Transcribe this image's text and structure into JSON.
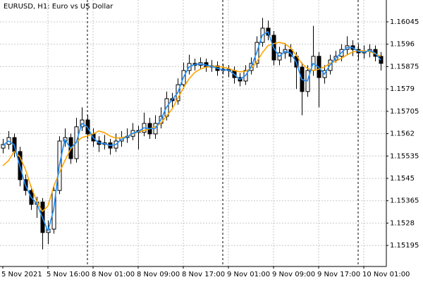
{
  "chart_data": {
    "type": "candlestick",
    "title": "EURUSD, H1:  Euro vs US Dollar",
    "categories": [
      "5 Nov 2021",
      null,
      null,
      null,
      null,
      null,
      null,
      null,
      "5 Nov 16:00",
      null,
      null,
      null,
      null,
      null,
      null,
      null,
      "8 Nov 01:00",
      null,
      null,
      null,
      null,
      null,
      null,
      null,
      "8 Nov 09:00",
      null,
      null,
      null,
      null,
      null,
      null,
      null,
      "8 Nov 17:00",
      null,
      null,
      null,
      null,
      null,
      null,
      null,
      "9 Nov 01:00",
      null,
      null,
      null,
      null,
      null,
      null,
      null,
      "9 Nov 09:00",
      null,
      null,
      null,
      null,
      null,
      null,
      null,
      "9 Nov 17:00",
      null,
      null,
      null,
      null,
      null,
      null,
      null,
      "10 Nov 01:00",
      null,
      null,
      null
    ],
    "open": [
      1.15565,
      1.15579,
      1.15605,
      1.15552,
      1.15445,
      1.15404,
      1.15351,
      1.1536,
      1.15244,
      1.15257,
      1.15404,
      1.15592,
      1.15605,
      1.15525,
      1.15646,
      1.15672,
      1.15619,
      1.15592,
      1.15579,
      1.15585,
      1.15565,
      1.15592,
      1.15605,
      1.1561,
      1.15632,
      1.15625,
      1.15659,
      1.15619,
      1.15659,
      1.15686,
      1.15753,
      1.15745,
      1.15806,
      1.1586,
      1.15887,
      1.1588,
      1.1589,
      1.15873,
      1.15878,
      1.1586,
      1.15865,
      1.1586,
      1.15833,
      1.1582,
      1.1586,
      1.15887,
      1.15967,
      1.16021,
      1.15994,
      1.159,
      1.15927,
      1.1594,
      1.15914,
      1.15873,
      1.1578,
      1.1586,
      1.15914,
      1.15833,
      1.1586,
      1.159,
      1.15914,
      1.1594,
      1.15954,
      1.1594,
      1.15927,
      1.15932,
      1.1594,
      1.15914
    ],
    "high": [
      1.156,
      1.1563,
      1.1562,
      1.1557,
      1.15465,
      1.1542,
      1.1538,
      1.15375,
      1.1529,
      1.1542,
      1.1561,
      1.1564,
      1.1562,
      1.1568,
      1.1572,
      1.1569,
      1.1564,
      1.1561,
      1.15615,
      1.156,
      1.1562,
      1.1563,
      1.1564,
      1.1566,
      1.1565,
      1.157,
      1.1568,
      1.1569,
      1.1572,
      1.1578,
      1.15775,
      1.1583,
      1.1589,
      1.1592,
      1.15905,
      1.1591,
      1.15905,
      1.159,
      1.15895,
      1.15885,
      1.1588,
      1.15875,
      1.1585,
      1.1588,
      1.1591,
      1.1599,
      1.1606,
      1.1605,
      1.1601,
      1.1595,
      1.15965,
      1.1596,
      1.1593,
      1.1589,
      1.1588,
      1.1603,
      1.1593,
      1.1588,
      1.1592,
      1.15935,
      1.1596,
      1.1599,
      1.15975,
      1.1596,
      1.15955,
      1.1596,
      1.15955,
      1.1593
    ],
    "low": [
      1.15545,
      1.1556,
      1.1553,
      1.1542,
      1.15385,
      1.1533,
      1.153,
      1.1518,
      1.152,
      1.1524,
      1.1539,
      1.1557,
      1.15505,
      1.1551,
      1.1563,
      1.156,
      1.1557,
      1.1555,
      1.1556,
      1.1554,
      1.1555,
      1.1557,
      1.15585,
      1.15595,
      1.1556,
      1.1561,
      1.156,
      1.156,
      1.1564,
      1.1567,
      1.1572,
      1.1573,
      1.1579,
      1.15845,
      1.1586,
      1.15865,
      1.15855,
      1.15855,
      1.1584,
      1.15845,
      1.15835,
      1.1581,
      1.158,
      1.15805,
      1.15845,
      1.1587,
      1.1595,
      1.15975,
      1.1588,
      1.1588,
      1.15905,
      1.1589,
      1.1579,
      1.1569,
      1.1576,
      1.1584,
      1.1572,
      1.1581,
      1.15845,
      1.1589,
      1.15895,
      1.1592,
      1.15915,
      1.159,
      1.15905,
      1.1591,
      1.15895,
      1.1586
    ],
    "close": [
      1.15579,
      1.15605,
      1.15552,
      1.15445,
      1.15404,
      1.15351,
      1.1536,
      1.15244,
      1.15257,
      1.15404,
      1.15592,
      1.15605,
      1.15525,
      1.15646,
      1.15672,
      1.15619,
      1.15592,
      1.15579,
      1.15585,
      1.15565,
      1.15592,
      1.15605,
      1.1561,
      1.15632,
      1.15625,
      1.15659,
      1.15619,
      1.15659,
      1.15686,
      1.15753,
      1.15745,
      1.15806,
      1.1586,
      1.15887,
      1.1588,
      1.1589,
      1.15873,
      1.15878,
      1.1586,
      1.15865,
      1.1586,
      1.15833,
      1.1582,
      1.1586,
      1.15887,
      1.15967,
      1.16021,
      1.15994,
      1.159,
      1.15927,
      1.1594,
      1.15914,
      1.15873,
      1.1578,
      1.1586,
      1.15914,
      1.15833,
      1.1586,
      1.159,
      1.15914,
      1.1594,
      1.15954,
      1.1594,
      1.15927,
      1.15932,
      1.1594,
      1.15914,
      1.15887
    ],
    "up_color": "#ffffff",
    "down_color": "#000000",
    "series": [
      {
        "color": "#ffa500",
        "values": [
          1.15498,
          1.15517,
          1.15552,
          1.15533,
          1.15485,
          1.15418,
          1.15364,
          1.15324,
          1.15345,
          1.15418,
          1.15471,
          1.15517,
          1.1556,
          1.15587,
          1.15605,
          1.15611,
          1.15619,
          1.1563,
          1.15624,
          1.15611,
          1.15603,
          1.15605,
          1.15608,
          1.15619,
          1.15627,
          1.15632,
          1.15638,
          1.15646,
          1.15659,
          1.15686,
          1.15713,
          1.15753,
          1.15793,
          1.15828,
          1.15852,
          1.15865,
          1.15873,
          1.15876,
          1.15876,
          1.15873,
          1.15868,
          1.1586,
          1.15855,
          1.15857,
          1.15868,
          1.15892,
          1.15927,
          1.15954,
          1.15962,
          1.15967,
          1.15962,
          1.15946,
          1.15919,
          1.15887,
          1.15868,
          1.1586,
          1.15865,
          1.15873,
          1.15887,
          1.15895,
          1.15906,
          1.15919,
          1.1593,
          1.15935,
          1.15935,
          1.15932,
          1.15924,
          1.15914
        ]
      },
      {
        "color": "#1e90ff",
        "values": [
          1.15575,
          1.15592,
          1.15578,
          1.15498,
          1.15425,
          1.15378,
          1.15355,
          1.15302,
          1.1525,
          1.1533,
          1.15498,
          1.15598,
          1.15565,
          1.15585,
          1.15659,
          1.15645,
          1.15605,
          1.15585,
          1.15582,
          1.15575,
          1.15578,
          1.15598,
          1.15608,
          1.15621,
          1.15628,
          1.15642,
          1.15639,
          1.15639,
          1.15672,
          1.1572,
          1.15749,
          1.15775,
          1.15833,
          1.15873,
          1.15883,
          1.15885,
          1.15881,
          1.15875,
          1.15869,
          1.15862,
          1.15862,
          1.15846,
          1.15826,
          1.1584,
          1.15873,
          1.15927,
          1.15994,
          1.16008,
          1.15947,
          1.15913,
          1.15933,
          1.15927,
          1.15893,
          1.15826,
          1.1582,
          1.15887,
          1.15873,
          1.15846,
          1.1588,
          1.15907,
          1.15927,
          1.15947,
          1.15947,
          1.15933,
          1.1593,
          1.15936,
          1.15927,
          1.159
        ]
      }
    ],
    "ylim": [
      1.15115,
      1.16128
    ],
    "yticks": [
      1.15195,
      1.1528,
      1.15365,
      1.1545,
      1.15535,
      1.1562,
      1.15705,
      1.1579,
      1.15875,
      1.1596,
      1.16045
    ],
    "grid": true
  }
}
